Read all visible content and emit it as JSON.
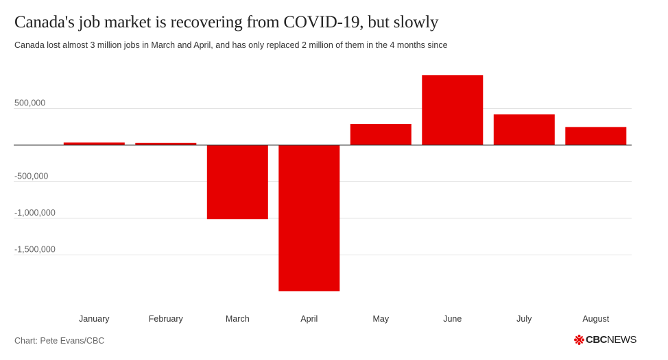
{
  "header": {
    "title": "Canada's job market is recovering from COVID-19, but slowly",
    "subtitle": "Canada lost almost 3 million jobs in March and April, and has only replaced 2 million of them in the 4 months since"
  },
  "footer": {
    "source": "Chart: Pete Evans/CBC",
    "logo_text_bold": "CBC",
    "logo_text_regular": "NEWS"
  },
  "colors": {
    "bar": "#e60000",
    "grid": "#e3e3e3",
    "baseline": "#333333"
  },
  "chart_data": {
    "type": "bar",
    "title": "Canada's job market is recovering from COVID-19, but slowly",
    "subtitle": "Canada lost almost 3 million jobs in March and April, and has only replaced 2 million of them in the 4 months since",
    "categories": [
      "January",
      "February",
      "March",
      "April",
      "May",
      "June",
      "July",
      "August"
    ],
    "values": [
      34500,
      30000,
      -1011000,
      -1994000,
      290000,
      953000,
      419000,
      246000
    ],
    "xlabel": "",
    "ylabel": "",
    "ylim": [
      -2000000,
      950000
    ],
    "yticks": [
      500000,
      0,
      -500000,
      -1000000,
      -1500000
    ],
    "ytick_labels": [
      "500,000",
      "",
      "-500,000",
      "-1,000,000",
      "-1,500,000"
    ],
    "grid": true,
    "legend": "none"
  }
}
